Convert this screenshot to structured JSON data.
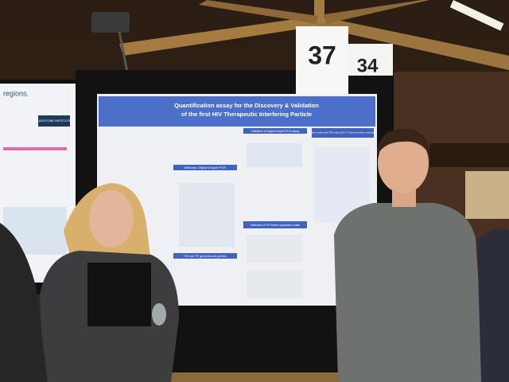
{
  "signs": [
    "37",
    "34"
  ],
  "left_poster": {
    "heading": "regions.",
    "logo": "GLADSTONE INSTITUTES"
  },
  "poster": {
    "title_lines": [
      "Quantification assay for the Discovery & Validation",
      "of the first HIV Therapeutic Interfering Particle"
    ],
    "sections": [
      "Validation of Digital Droplet PCR assay",
      "Methods: Digital Droplet PCR",
      "Mice treated with TIPs retain CD4+ T-Cells and reduce viral load",
      "Detection of TIP before population crash",
      "HIV and TIP genomes and primers"
    ]
  }
}
